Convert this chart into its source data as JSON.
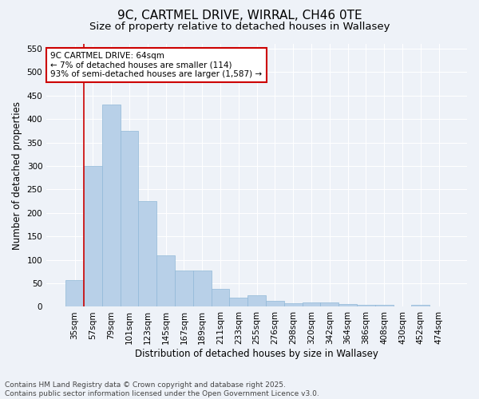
{
  "title1": "9C, CARTMEL DRIVE, WIRRAL, CH46 0TE",
  "title2": "Size of property relative to detached houses in Wallasey",
  "xlabel": "Distribution of detached houses by size in Wallasey",
  "ylabel": "Number of detached properties",
  "categories": [
    "35sqm",
    "57sqm",
    "79sqm",
    "101sqm",
    "123sqm",
    "145sqm",
    "167sqm",
    "189sqm",
    "211sqm",
    "233sqm",
    "255sqm",
    "276sqm",
    "298sqm",
    "320sqm",
    "342sqm",
    "364sqm",
    "386sqm",
    "408sqm",
    "430sqm",
    "452sqm",
    "474sqm"
  ],
  "values": [
    57,
    300,
    430,
    375,
    225,
    110,
    77,
    77,
    38,
    20,
    25,
    13,
    8,
    9,
    9,
    6,
    4,
    4,
    0,
    4,
    0
  ],
  "bar_color": "#b8d0e8",
  "bar_edge_color": "#90b8d8",
  "red_line_x": 0.5,
  "ylim": [
    0,
    560
  ],
  "yticks": [
    0,
    50,
    100,
    150,
    200,
    250,
    300,
    350,
    400,
    450,
    500,
    550
  ],
  "annotation_title": "9C CARTMEL DRIVE: 64sqm",
  "annotation_line1": "← 7% of detached houses are smaller (114)",
  "annotation_line2": "93% of semi-detached houses are larger (1,587) →",
  "annotation_box_color": "#ffffff",
  "annotation_box_edge": "#cc0000",
  "red_line_color": "#cc0000",
  "footer1": "Contains HM Land Registry data © Crown copyright and database right 2025.",
  "footer2": "Contains public sector information licensed under the Open Government Licence v3.0.",
  "background_color": "#eef2f8",
  "grid_color": "#ffffff",
  "title1_fontsize": 11,
  "title2_fontsize": 9.5,
  "axis_label_fontsize": 8.5,
  "tick_fontsize": 7.5,
  "footer_fontsize": 6.5,
  "annotation_fontsize": 7.5
}
